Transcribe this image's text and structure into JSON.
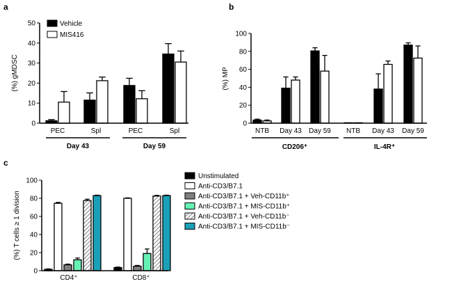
{
  "chart_data": [
    {
      "panel": "a",
      "type": "bar",
      "ylabel": "(%) gMDSC",
      "ylim": [
        0,
        50
      ],
      "yticks": [
        0,
        10,
        20,
        30,
        40,
        50
      ],
      "categories": [
        "PEC",
        "Spl",
        "PEC",
        "Spl"
      ],
      "groups": [
        "Day 43",
        "Day 59"
      ],
      "legend": [
        "Vehicle",
        "MIS416"
      ],
      "series": [
        {
          "name": "Vehicle",
          "color": "#000000",
          "values": [
            1.2,
            11.5,
            18.8,
            34.5
          ],
          "errors": [
            0.6,
            3.6,
            3.6,
            5.2
          ]
        },
        {
          "name": "MIS416",
          "color": "#ffffff",
          "values": [
            10.5,
            21.2,
            12.2,
            30.5
          ],
          "errors": [
            5.3,
            1.8,
            4.0,
            5.5
          ]
        }
      ]
    },
    {
      "panel": "b",
      "type": "bar",
      "ylabel": "(%) MP",
      "ylim": [
        0,
        100
      ],
      "yticks": [
        0,
        20,
        40,
        60,
        80,
        100
      ],
      "categories": [
        "NTB",
        "Day 43",
        "Day 59",
        "NTB",
        "Day 43",
        "Day 59"
      ],
      "groups": [
        "CD206⁺",
        "IL-4R⁺"
      ],
      "series": [
        {
          "name": "black",
          "color": "#000000",
          "values": [
            3.5,
            39,
            80.5,
            0.3,
            38,
            87
          ],
          "errors": [
            1.0,
            12.5,
            3.5,
            0,
            17,
            2.5
          ]
        },
        {
          "name": "white",
          "color": "#ffffff",
          "values": [
            2.5,
            48,
            58,
            0.3,
            65.5,
            72.5
          ],
          "errors": [
            1.0,
            3.5,
            17.5,
            0,
            3.8,
            13.5
          ]
        }
      ]
    },
    {
      "panel": "c",
      "type": "bar",
      "ylabel": "(%) T cells ≥ 1 division",
      "ylim": [
        0,
        100
      ],
      "yticks": [
        0,
        20,
        40,
        60,
        80,
        100
      ],
      "categories": [
        "CD4⁺",
        "CD8⁺"
      ],
      "legend": [
        "Unstimulated",
        "Anti-CD3/B7.1",
        "Anti-CD3/B7.1 + Veh-CD11b⁺",
        "Anti-CD3/B7.1 + MIS-CD11b⁺",
        "Anti-CD3/B7.1 + Veh-CD11b⁻",
        "Anti-CD3/B7.1 + MIS-CD11b⁻"
      ],
      "series": [
        {
          "name": "Unstimulated",
          "color": "#000000",
          "values": [
            1.5,
            3.5
          ],
          "errors": [
            0.5,
            0.5
          ]
        },
        {
          "name": "Anti-CD3/B7.1",
          "color": "#ffffff",
          "values": [
            74.5,
            80
          ],
          "errors": [
            1.0,
            0.5
          ]
        },
        {
          "name": "Anti-CD3/B7.1 + Veh-CD11b⁺",
          "color": "#7f7f7f",
          "values": [
            6.5,
            5
          ],
          "errors": [
            0.8,
            0.8
          ]
        },
        {
          "name": "Anti-CD3/B7.1 + MIS-CD11b⁺",
          "color": "#66f2b4",
          "values": [
            12,
            19
          ],
          "errors": [
            2.0,
            5.0
          ]
        },
        {
          "name": "Anti-CD3/B7.1 + Veh-CD11b⁻",
          "color": "hatch",
          "values": [
            77.5,
            82.5
          ],
          "errors": [
            1.5,
            0.8
          ]
        },
        {
          "name": "Anti-CD3/B7.1 + MIS-CD11b⁻",
          "color": "#1aa1b8",
          "values": [
            83,
            83
          ],
          "errors": [
            0.5,
            0.5
          ]
        }
      ]
    }
  ],
  "panel_letters": [
    "a",
    "b",
    "c"
  ]
}
